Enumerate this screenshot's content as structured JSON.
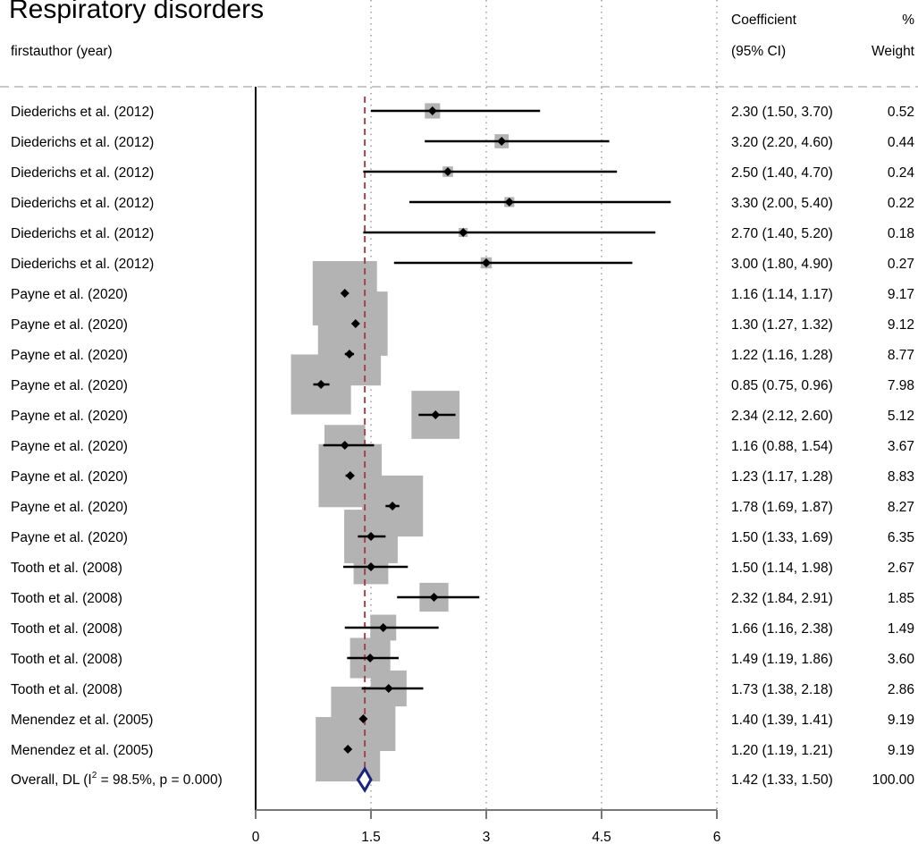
{
  "chart_data": {
    "type": "forest",
    "title": "Respiratory disorders",
    "column_headers": {
      "study": "firstauthor (year)",
      "effect_line1": "Coefficient",
      "effect_line2": "(95% CI)",
      "weight_line1": "%",
      "weight_line2": "Weight"
    },
    "xlim": [
      0,
      6
    ],
    "x_ticks": [
      0,
      1.5,
      3,
      4.5,
      6
    ],
    "x_tick_labels": [
      "0",
      "1.5",
      "3",
      "4.5",
      "6"
    ],
    "grid": "dotted vertical at ticks",
    "studies": [
      {
        "label": "Diederichs et al. (2012)",
        "est": 2.3,
        "lo": 1.5,
        "hi": 3.7,
        "ci_text": "2.30 (1.50, 3.70)",
        "weight": 0.52,
        "weight_text": "0.52"
      },
      {
        "label": "Diederichs et al. (2012)",
        "est": 3.2,
        "lo": 2.2,
        "hi": 4.6,
        "ci_text": "3.20 (2.20, 4.60)",
        "weight": 0.44,
        "weight_text": "0.44"
      },
      {
        "label": "Diederichs et al. (2012)",
        "est": 2.5,
        "lo": 1.4,
        "hi": 4.7,
        "ci_text": "2.50 (1.40, 4.70)",
        "weight": 0.24,
        "weight_text": "0.24"
      },
      {
        "label": "Diederichs et al. (2012)",
        "est": 3.3,
        "lo": 2.0,
        "hi": 5.4,
        "ci_text": "3.30 (2.00, 5.40)",
        "weight": 0.22,
        "weight_text": "0.22"
      },
      {
        "label": "Diederichs et al. (2012)",
        "est": 2.7,
        "lo": 1.4,
        "hi": 5.2,
        "ci_text": "2.70 (1.40, 5.20)",
        "weight": 0.18,
        "weight_text": "0.18"
      },
      {
        "label": "Diederichs et al. (2012)",
        "est": 3.0,
        "lo": 1.8,
        "hi": 4.9,
        "ci_text": "3.00 (1.80, 4.90)",
        "weight": 0.27,
        "weight_text": "0.27"
      },
      {
        "label": "Payne et al. (2020)",
        "est": 1.16,
        "lo": 1.14,
        "hi": 1.17,
        "ci_text": "1.16 (1.14, 1.17)",
        "weight": 9.17,
        "weight_text": "9.17"
      },
      {
        "label": "Payne et al. (2020)",
        "est": 1.3,
        "lo": 1.27,
        "hi": 1.32,
        "ci_text": "1.30 (1.27, 1.32)",
        "weight": 9.12,
        "weight_text": "9.12"
      },
      {
        "label": "Payne et al. (2020)",
        "est": 1.22,
        "lo": 1.16,
        "hi": 1.28,
        "ci_text": "1.22 (1.16, 1.28)",
        "weight": 8.77,
        "weight_text": "8.77"
      },
      {
        "label": "Payne et al. (2020)",
        "est": 0.85,
        "lo": 0.75,
        "hi": 0.96,
        "ci_text": "0.85 (0.75, 0.96)",
        "weight": 7.98,
        "weight_text": "7.98"
      },
      {
        "label": "Payne et al. (2020)",
        "est": 2.34,
        "lo": 2.12,
        "hi": 2.6,
        "ci_text": "2.34 (2.12, 2.60)",
        "weight": 5.12,
        "weight_text": "5.12"
      },
      {
        "label": "Payne et al. (2020)",
        "est": 1.16,
        "lo": 0.88,
        "hi": 1.54,
        "ci_text": "1.16 (0.88, 1.54)",
        "weight": 3.67,
        "weight_text": "3.67"
      },
      {
        "label": "Payne et al. (2020)",
        "est": 1.23,
        "lo": 1.17,
        "hi": 1.28,
        "ci_text": "1.23 (1.17, 1.28)",
        "weight": 8.83,
        "weight_text": "8.83"
      },
      {
        "label": "Payne et al. (2020)",
        "est": 1.78,
        "lo": 1.69,
        "hi": 1.87,
        "ci_text": "1.78 (1.69, 1.87)",
        "weight": 8.27,
        "weight_text": "8.27"
      },
      {
        "label": "Payne et al. (2020)",
        "est": 1.5,
        "lo": 1.33,
        "hi": 1.69,
        "ci_text": "1.50 (1.33, 1.69)",
        "weight": 6.35,
        "weight_text": "6.35"
      },
      {
        "label": "Tooth et al. (2008)",
        "est": 1.5,
        "lo": 1.14,
        "hi": 1.98,
        "ci_text": "1.50 (1.14, 1.98)",
        "weight": 2.67,
        "weight_text": "2.67"
      },
      {
        "label": "Tooth et al. (2008)",
        "est": 2.32,
        "lo": 1.84,
        "hi": 2.91,
        "ci_text": "2.32 (1.84, 2.91)",
        "weight": 1.85,
        "weight_text": "1.85"
      },
      {
        "label": "Tooth et al. (2008)",
        "est": 1.66,
        "lo": 1.16,
        "hi": 2.38,
        "ci_text": "1.66 (1.16, 2.38)",
        "weight": 1.49,
        "weight_text": "1.49"
      },
      {
        "label": "Tooth et al. (2008)",
        "est": 1.49,
        "lo": 1.19,
        "hi": 1.86,
        "ci_text": "1.49 (1.19, 1.86)",
        "weight": 3.6,
        "weight_text": "3.60"
      },
      {
        "label": "Tooth et al. (2008)",
        "est": 1.73,
        "lo": 1.38,
        "hi": 2.18,
        "ci_text": "1.73 (1.38, 2.18)",
        "weight": 2.86,
        "weight_text": "2.86"
      },
      {
        "label": "Menendez et al. (2005)",
        "est": 1.4,
        "lo": 1.39,
        "hi": 1.41,
        "ci_text": "1.40 (1.39, 1.41)",
        "weight": 9.19,
        "weight_text": "9.19"
      },
      {
        "label": "Menendez et al. (2005)",
        "est": 1.2,
        "lo": 1.19,
        "hi": 1.21,
        "ci_text": "1.20 (1.19, 1.21)",
        "weight": 9.19,
        "weight_text": "9.19"
      }
    ],
    "overall": {
      "label_prefix": "Overall, DL (I",
      "label_sup": "2",
      "label_suffix": " = 98.5%, p = 0.000)",
      "est": 1.42,
      "lo": 1.33,
      "hi": 1.5,
      "ci_text": "1.42 (1.33, 1.50)",
      "weight_text": "100.00"
    },
    "colors": {
      "box": "#b3b3b3",
      "ci_line": "#000000",
      "overall_diamond": "#1a237e",
      "overall_line": "#a0454f",
      "grid": "#9e9e9e",
      "header_rule": "#c8c8c8",
      "axis": "#777777"
    }
  }
}
